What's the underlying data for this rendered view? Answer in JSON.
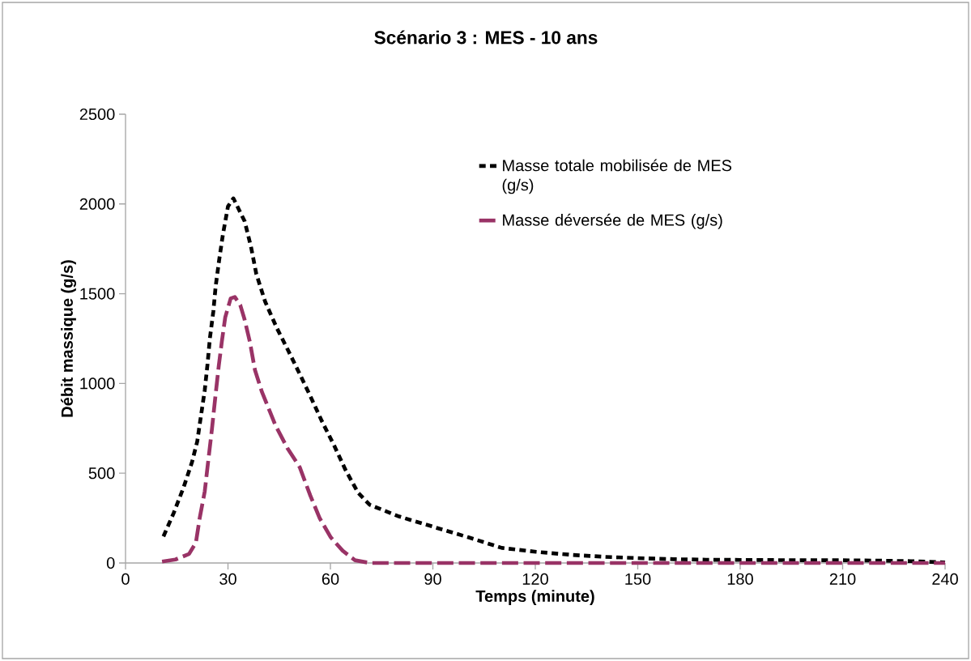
{
  "chart_data": {
    "type": "line",
    "title": "Scénario 3 : MES - 10 ans",
    "xlabel": "Temps (minute)",
    "ylabel": "Débit massique (g/s)",
    "xlim": [
      0,
      240
    ],
    "ylim": [
      0,
      2500
    ],
    "xticks": [
      0,
      30,
      60,
      90,
      120,
      150,
      180,
      210,
      240
    ],
    "yticks": [
      0,
      500,
      1000,
      1500,
      2000,
      2500
    ],
    "legend": "top right",
    "series": [
      {
        "name": "Masse totale mobilisée de MES (g/s)",
        "color": "#000000",
        "line_style": "dotted",
        "x": [
          11.1,
          14.1,
          17.0,
          19.5,
          21.0,
          22.1,
          23.2,
          24.0,
          24.7,
          25.7,
          26.4,
          27.4,
          28.5,
          30.0,
          31.6,
          34.9,
          36.8,
          38.3,
          40.9,
          44.3,
          47.7,
          51.0,
          54.3,
          57.5,
          61.1,
          64.4,
          68.1,
          71.5,
          80.1,
          90.4,
          100.2,
          110.2,
          120.3,
          130.7,
          140.4,
          150.1,
          160.5,
          170,
          180,
          190,
          200,
          210,
          220,
          230,
          240
        ],
        "values": [
          148,
          278,
          421,
          564,
          677,
          821,
          963,
          1106,
          1251,
          1399,
          1542,
          1685,
          1828,
          1986,
          2031,
          1903,
          1756,
          1610,
          1455,
          1309,
          1181,
          1053,
          922,
          790,
          654,
          519,
          391,
          324,
          259,
          200,
          144,
          84,
          62,
          45,
          34,
          27,
          21,
          18,
          17,
          16,
          15,
          15,
          13,
          10,
          3
        ]
      },
      {
        "name": "Masse déversée de MES (g/s)",
        "color": "#993366",
        "line_style": "dashed",
        "x": [
          10.7,
          14.6,
          18.6,
          20.6,
          21.7,
          23.2,
          24.1,
          25.3,
          26.3,
          27.3,
          28.2,
          29.2,
          30.8,
          32.0,
          33.6,
          34.8,
          36.4,
          37.9,
          39.9,
          43.9,
          47.4,
          51.0,
          54.1,
          56.9,
          60.1,
          63.6,
          67.2,
          71.5,
          90,
          120,
          150,
          180,
          210,
          240
        ],
        "values": [
          8,
          19,
          50,
          113,
          248,
          399,
          549,
          745,
          925,
          1098,
          1233,
          1369,
          1474,
          1482,
          1437,
          1361,
          1233,
          1075,
          955,
          767,
          640,
          534,
          376,
          248,
          143,
          68,
          15,
          0,
          0,
          0,
          0,
          0,
          0,
          0
        ]
      }
    ]
  }
}
